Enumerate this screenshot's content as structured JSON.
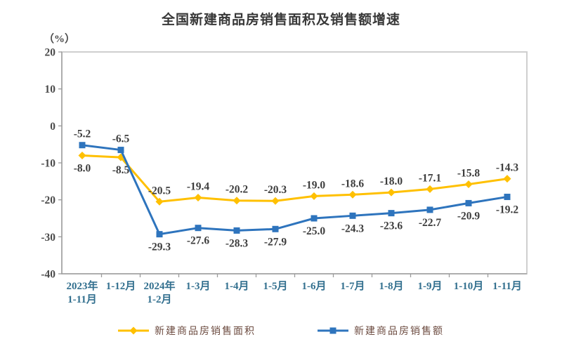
{
  "chart_data": {
    "type": "line",
    "title": "全国新建商品房销售面积及销售额增速",
    "unit_label": "（%）",
    "categories": [
      [
        "2023年",
        "1-11月"
      ],
      [
        "1-12月"
      ],
      [
        "2024年",
        "1-2月"
      ],
      [
        "1-3月"
      ],
      [
        "1-4月"
      ],
      [
        "1-5月"
      ],
      [
        "1-6月"
      ],
      [
        "1-7月"
      ],
      [
        "1-8月"
      ],
      [
        "1-9月"
      ],
      [
        "1-10月"
      ],
      [
        "1-11月"
      ]
    ],
    "series": [
      {
        "name": "新建商品房销售面积",
        "color": "#FFC000",
        "marker": "diamond",
        "values": [
          -8.0,
          -8.5,
          -20.5,
          -19.4,
          -20.2,
          -20.3,
          -19.0,
          -18.6,
          -18.0,
          -17.1,
          -15.8,
          -14.3
        ],
        "label_sides": [
          "down",
          "down",
          "up",
          "up",
          "up",
          "up",
          "up",
          "up",
          "up",
          "up",
          "up",
          "up"
        ]
      },
      {
        "name": "新建商品房销售额",
        "color": "#2e74bd",
        "marker": "square",
        "values": [
          -5.2,
          -6.5,
          -29.3,
          -27.6,
          -28.3,
          -27.9,
          -25.0,
          -24.3,
          -23.6,
          -22.7,
          -20.9,
          -19.2
        ],
        "label_sides": [
          "up",
          "up",
          "down",
          "down",
          "down",
          "down",
          "down",
          "down",
          "down",
          "down",
          "down",
          "down"
        ]
      }
    ],
    "ylim": [
      -40,
      20
    ],
    "yticks": [
      20,
      10,
      0,
      -10,
      -20,
      -30,
      -40
    ],
    "grid": false,
    "legend_position": "bottom",
    "colors": {
      "frame": "#cfcfcf",
      "spine": "#9b9b9b",
      "y_tick_text": "#4a4a4a",
      "x_tick_text": "#33708f",
      "data_label_text": "#3d3d3d",
      "legend_text": "#6d4c41",
      "title_text": "#383838"
    }
  }
}
